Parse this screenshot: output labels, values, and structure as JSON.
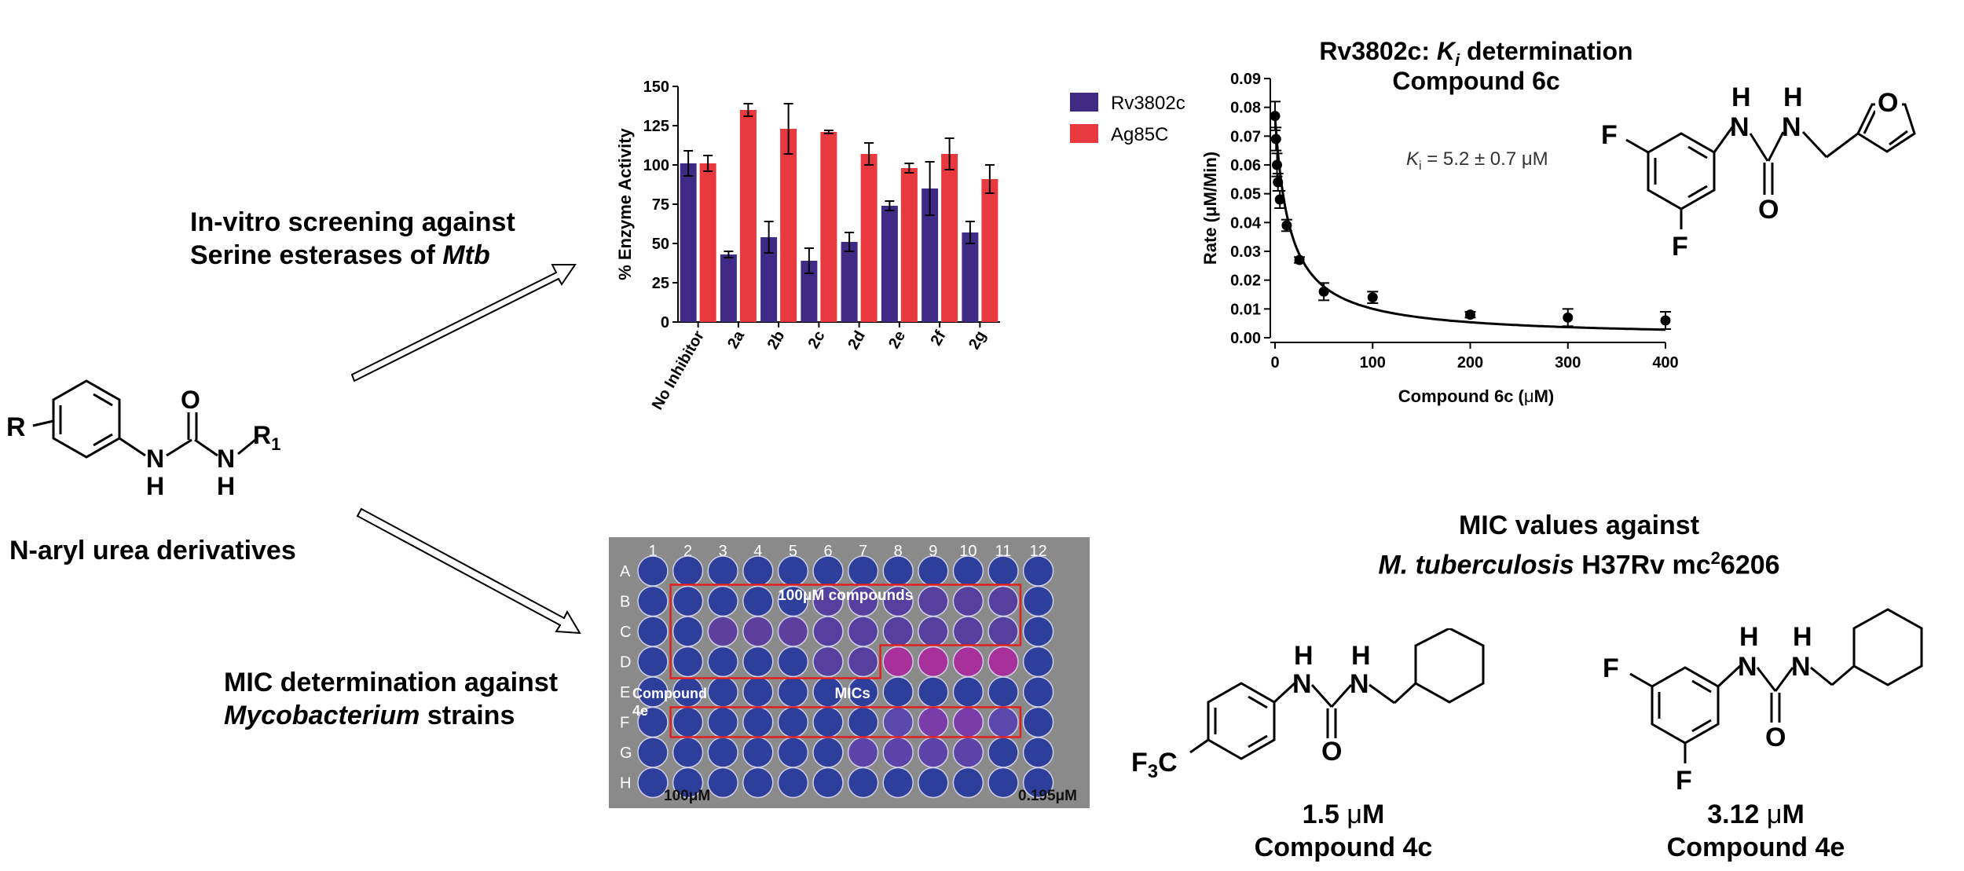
{
  "core": {
    "label": "N-aryl urea derivatives",
    "atoms": {
      "r": "R",
      "o": "O",
      "n": "N",
      "h": "H",
      "r1": "R",
      "r1_sub": "1"
    }
  },
  "screening": {
    "line1": "In-vitro screening against",
    "line2_prefix": "Serine esterases of ",
    "line2_italic": "Mtb"
  },
  "mic_det": {
    "line1": "MIC determination against",
    "line2_italic": "Mycobacterium",
    "line2_suffix": " strains"
  },
  "chart_data": [
    {
      "type": "bar",
      "categories": [
        "No Inhibitor",
        "2a",
        "2b",
        "2c",
        "2d",
        "2e",
        "2f",
        "2g"
      ],
      "series": [
        {
          "name": "Rv3802c",
          "values": [
            101,
            43,
            54,
            39,
            51,
            74,
            85,
            57
          ],
          "errors": [
            8,
            2,
            10,
            8,
            6,
            3,
            17,
            7
          ]
        },
        {
          "name": "Ag85C",
          "values": [
            101,
            135,
            123,
            121,
            107,
            98,
            107,
            91
          ],
          "errors": [
            5,
            4,
            16,
            1,
            7,
            3,
            10,
            9
          ]
        }
      ],
      "ylabel": "% Enzyme Activity",
      "ylim": [
        0,
        150
      ],
      "yticks": [
        0,
        25,
        50,
        75,
        100,
        125,
        150
      ],
      "legend": "right",
      "colors": {
        "Rv3802c": "#3f2a86",
        "Ag85C": "#e8393f"
      }
    },
    {
      "type": "scatter",
      "title_prefix": "Rv3802c: ",
      "title_italic": "K",
      "title_sub": "i",
      "title_suffix": " determination",
      "subtitle": "Compound 6c",
      "xlabel_prefix": "Compound 6c (",
      "xlabel_mu": "μ",
      "xlabel_suffix": "M)",
      "ylabel": "Rate (μM/Min)",
      "xlim": [
        0,
        400
      ],
      "ylim": [
        0,
        0.09
      ],
      "xticks": [
        "0",
        "100",
        "200",
        "300",
        "400"
      ],
      "yticks": [
        "0.00",
        "0.01",
        "0.02",
        "0.03",
        "0.04",
        "0.05",
        "0.06",
        "0.07",
        "0.08",
        "0.09"
      ],
      "annotation_k": "K",
      "annotation_sub": "i",
      "annotation_rest": " = 5.2 ± 0.7 μM",
      "points": [
        {
          "x": 0,
          "y": 0.077,
          "err": 0.005
        },
        {
          "x": 1,
          "y": 0.069,
          "err": 0.004
        },
        {
          "x": 2,
          "y": 0.06,
          "err": 0.004
        },
        {
          "x": 3,
          "y": 0.054,
          "err": 0.003
        },
        {
          "x": 5,
          "y": 0.048,
          "err": 0.003
        },
        {
          "x": 12,
          "y": 0.039,
          "err": 0.002
        },
        {
          "x": 25,
          "y": 0.027,
          "err": 0.001
        },
        {
          "x": 50,
          "y": 0.016,
          "err": 0.003
        },
        {
          "x": 100,
          "y": 0.014,
          "err": 0.002
        },
        {
          "x": 200,
          "y": 0.008,
          "err": 0.001
        },
        {
          "x": 300,
          "y": 0.007,
          "err": 0.003
        },
        {
          "x": 400,
          "y": 0.006,
          "err": 0.003
        }
      ],
      "fit": {
        "v0": 0.077,
        "c50": 15
      }
    }
  ],
  "plate": {
    "cols": [
      "1",
      "2",
      "3",
      "4",
      "5",
      "6",
      "7",
      "8",
      "9",
      "10",
      "11",
      "12"
    ],
    "rows": [
      "A",
      "B",
      "C",
      "D",
      "E",
      "F",
      "G",
      "H"
    ],
    "label_top": "100μM compounds",
    "label_compound_1": "Compound",
    "label_compound_2": "4e",
    "label_mics": "MICs",
    "label_left": "100μM",
    "label_right": "0.195μM"
  },
  "mic_values": {
    "title1": "MIC values against",
    "title2_italic": "M. tuberculosis",
    "title2_mid": " H37Rv mc",
    "title2_sup": "2",
    "title2_end": "6206"
  },
  "compound_6c": {
    "atoms": {
      "f": "F",
      "n": "N",
      "h": "H",
      "o": "O"
    }
  },
  "compound_4c": {
    "value_num": "1.5 ",
    "value_mu": "μ",
    "value_unit": "M",
    "name": "Compound 4c",
    "atoms": {
      "f3c_a": "F",
      "f3c_b": "3",
      "f3c_c": "C",
      "n": "N",
      "h": "H",
      "o": "O"
    }
  },
  "compound_4e": {
    "value_num": "3.12 ",
    "value_mu": "μ",
    "value_unit": "M",
    "name": "Compound 4e",
    "atoms": {
      "f": "F",
      "n": "N",
      "h": "H",
      "o": "O"
    }
  }
}
